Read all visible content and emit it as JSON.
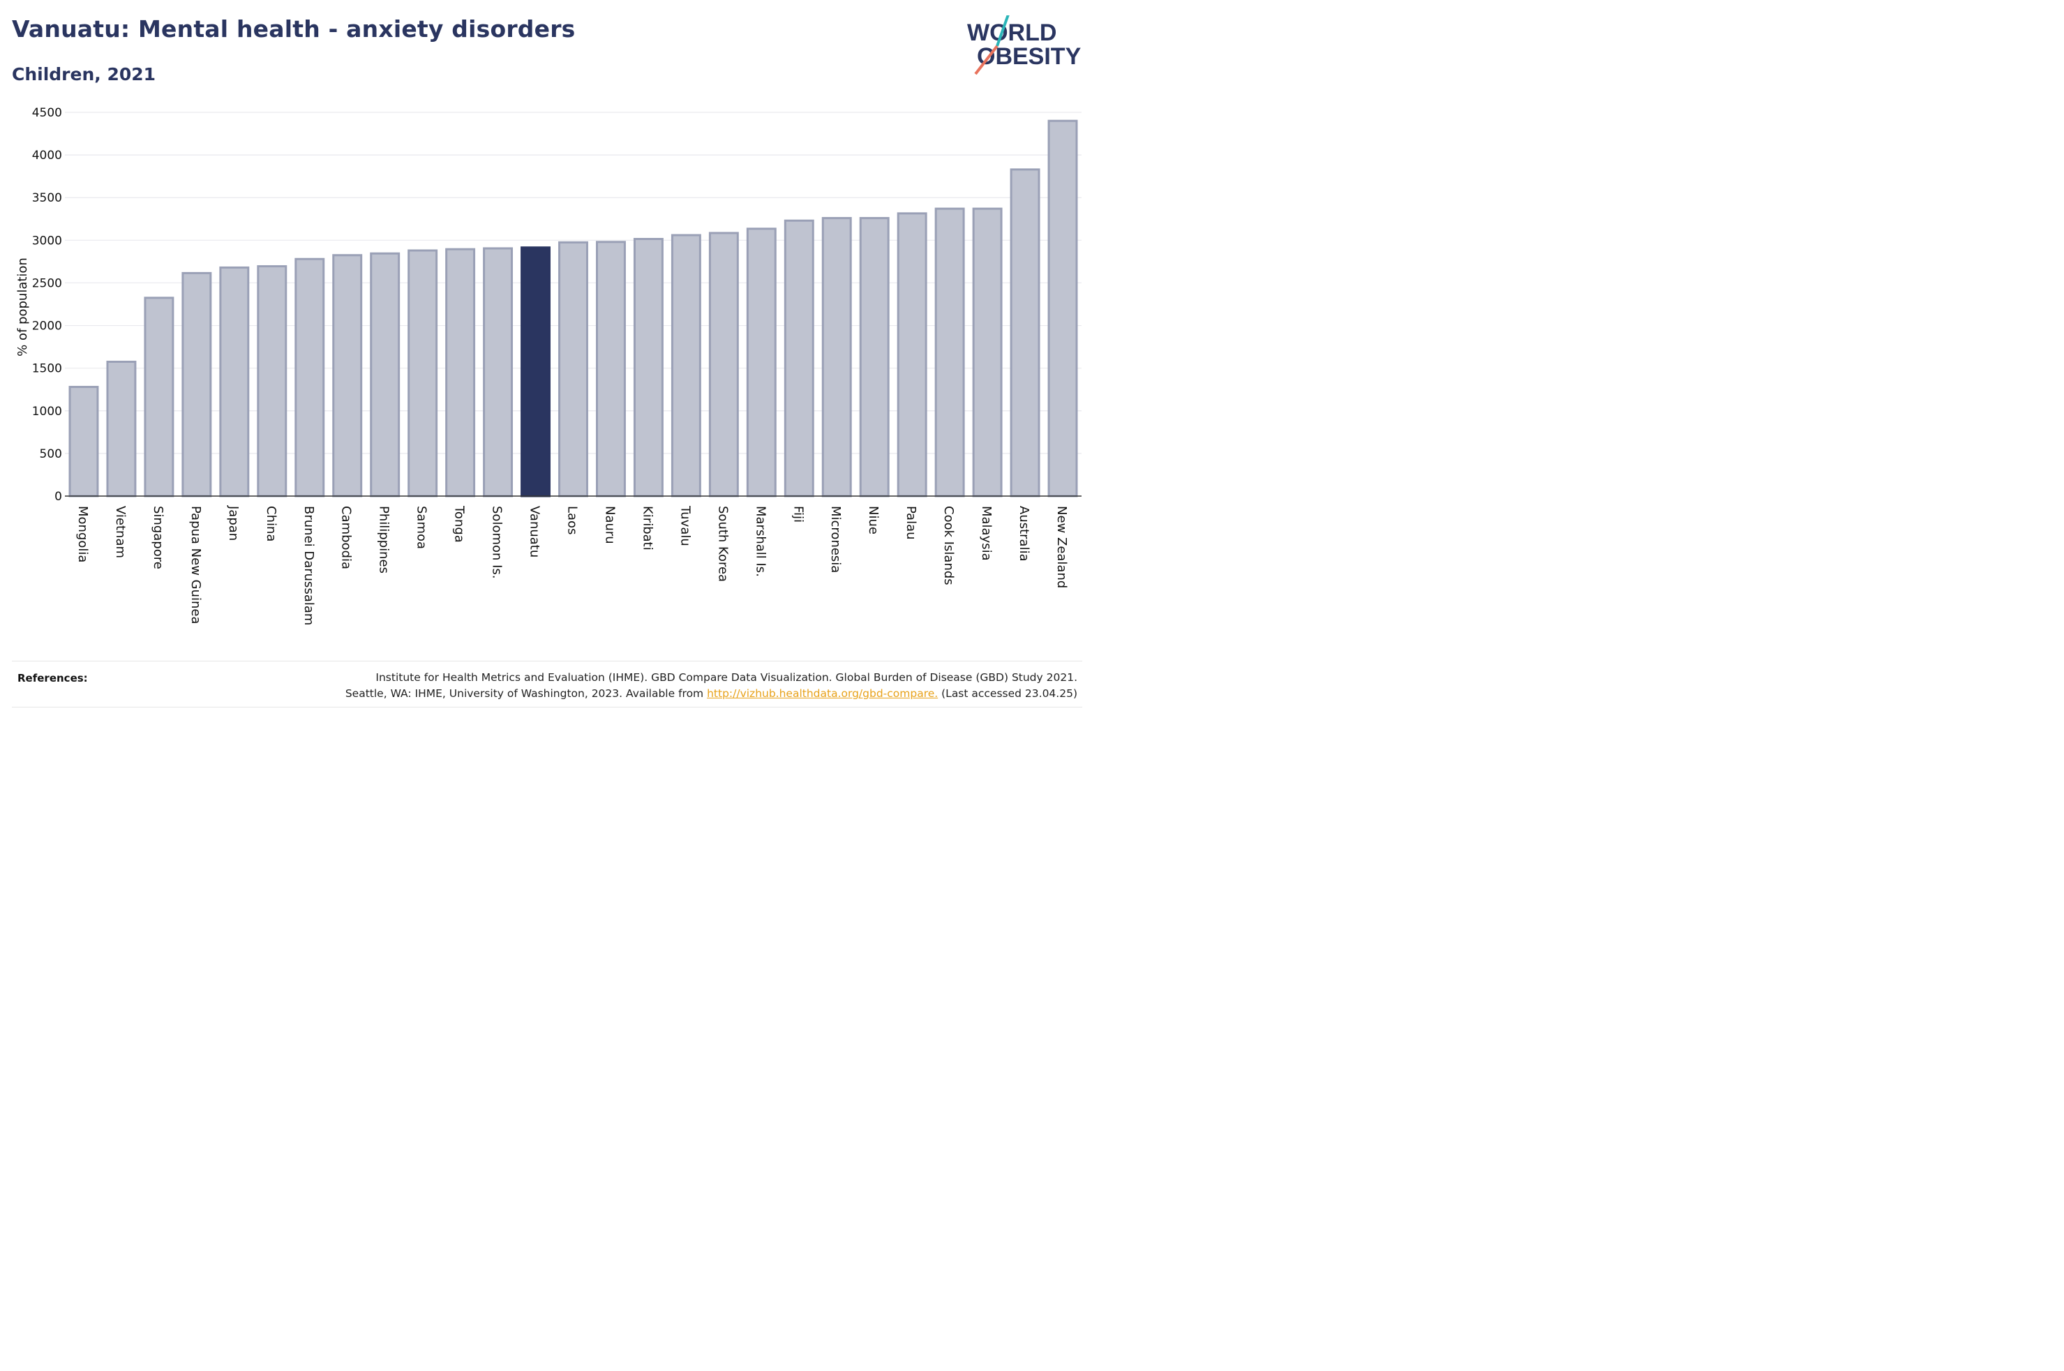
{
  "header": {
    "title": "Vanuatu: Mental health - anxiety disorders",
    "subtitle": "Children, 2021"
  },
  "logo": {
    "line1": "WORLD",
    "line2": "OBESITY",
    "accent_colors": [
      "#2bb5b8",
      "#e8725c"
    ]
  },
  "chart_data": {
    "type": "bar",
    "categories": [
      "Mongolia",
      "Vietnam",
      "Singapore",
      "Papua New Guinea",
      "Japan",
      "China",
      "Brunei Darussalam",
      "Cambodia",
      "Philippines",
      "Samoa",
      "Tonga",
      "Solomon Is.",
      "Vanuatu",
      "Laos",
      "Nauru",
      "Kiribati",
      "Tuvalu",
      "South Korea",
      "Marshall Is.",
      "Fiji",
      "Micronesia",
      "Niue",
      "Palau",
      "Cook Islands",
      "Malaysia",
      "Australia",
      "New Zealand"
    ],
    "values": [
      1280,
      1575,
      2325,
      2615,
      2680,
      2695,
      2780,
      2825,
      2845,
      2880,
      2895,
      2905,
      2915,
      2975,
      2980,
      3015,
      3060,
      3085,
      3135,
      3230,
      3260,
      3260,
      3315,
      3370,
      3370,
      3830,
      4400
    ],
    "highlight": "Vanuatu",
    "ylabel": "% of population",
    "ylim": [
      0,
      4500
    ],
    "yticks": [
      0,
      500,
      1000,
      1500,
      2000,
      2500,
      3000,
      3500,
      4000,
      4500
    ],
    "grid": true,
    "colors": {
      "bar": "#bfc3d0",
      "bar_edge": "#9aa0b6",
      "highlight": "#2a3560"
    }
  },
  "references": {
    "label": "References:",
    "line1": "Institute for Health Metrics and Evaluation (IHME). GBD Compare Data Visualization. Global Burden of Disease (GBD) Study 2021.",
    "line2_prefix": "Seattle, WA: IHME, University of Washington, 2023. Available from ",
    "link": "http://vizhub.healthdata.org/gbd-compare.",
    "line2_suffix": " (Last accessed 23.04.25)"
  }
}
